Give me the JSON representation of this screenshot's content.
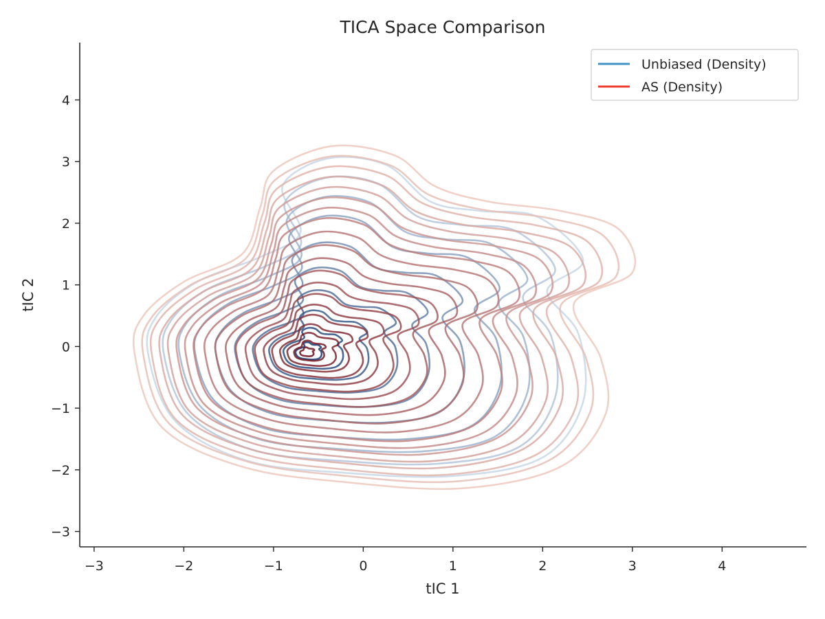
{
  "chart_data": {
    "type": "contour",
    "title": "TICA Space Comparison",
    "xlabel": "tIC 1",
    "ylabel": "tIC 2",
    "xlim": [
      -3.16,
      4.94
    ],
    "ylim": [
      -3.25,
      4.93
    ],
    "xticks": [
      -3,
      -2,
      -1,
      0,
      1,
      2,
      3,
      4
    ],
    "yticks": [
      -3,
      -2,
      -1,
      0,
      1,
      2,
      3,
      4
    ],
    "xtick_labels": [
      "−3",
      "−2",
      "−1",
      "0",
      "1",
      "2",
      "3",
      "4"
    ],
    "ytick_labels": [
      "−3",
      "−2",
      "−1",
      "0",
      "1",
      "2",
      "3",
      "4"
    ],
    "grid": false,
    "legend_position": "top-right",
    "series": [
      {
        "name": "Unbiased (Density)",
        "legend_color": "#4292c6",
        "color_light": "#deebf7",
        "color_dark": "#08306b",
        "density_peak": [
          -0.65,
          -0.1
        ],
        "levels": 10,
        "extent": {
          "x": [
            -2.4,
            2.45
          ],
          "y": [
            -2.1,
            3.05
          ]
        }
      },
      {
        "name": "AS (Density)",
        "legend_color": "#ef3b2c",
        "color_light": "#fee0d2",
        "color_dark": "#67000d",
        "density_peak": [
          -0.65,
          -0.1
        ],
        "levels": 20,
        "extent": {
          "x": [
            -2.55,
            3.0
          ],
          "y": [
            -2.3,
            3.25
          ]
        }
      }
    ]
  }
}
